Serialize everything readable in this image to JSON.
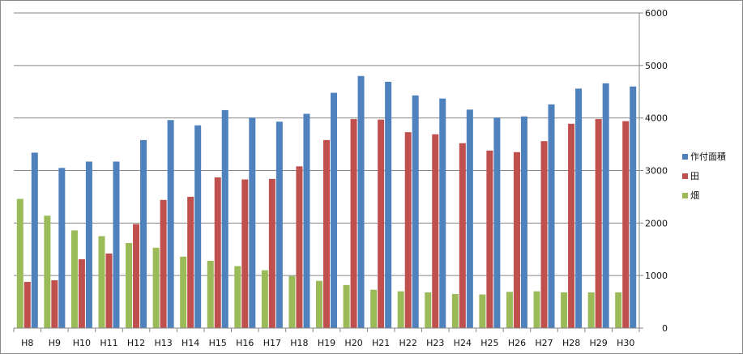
{
  "chart_data": {
    "type": "bar",
    "categories": [
      "H8",
      "H9",
      "H10",
      "H11",
      "H12",
      "H13",
      "H14",
      "H15",
      "H16",
      "H17",
      "H18",
      "H19",
      "H20",
      "H21",
      "H22",
      "H23",
      "H24",
      "H25",
      "H26",
      "H27",
      "H28",
      "H29",
      "H30"
    ],
    "series": [
      {
        "name": "畑",
        "color": "#9bbb59",
        "values": [
          2460,
          2140,
          1860,
          1750,
          1620,
          1530,
          1360,
          1280,
          1180,
          1100,
          990,
          900,
          820,
          730,
          700,
          680,
          650,
          640,
          690,
          700,
          680,
          680,
          680
        ]
      },
      {
        "name": "田",
        "color": "#c0504d",
        "values": [
          880,
          910,
          1310,
          1420,
          1980,
          2440,
          2500,
          2870,
          2830,
          2840,
          3080,
          3580,
          3980,
          3970,
          3730,
          3690,
          3520,
          3380,
          3350,
          3560,
          3890,
          3980,
          3940
        ]
      },
      {
        "name": "作付面積",
        "color": "#4f81bd",
        "values": [
          3340,
          3050,
          3170,
          3170,
          3580,
          3960,
          3860,
          4150,
          4010,
          3930,
          4080,
          4480,
          4800,
          4690,
          4430,
          4370,
          4160,
          4010,
          4030,
          4260,
          4560,
          4660,
          4600
        ]
      }
    ],
    "legend_order": [
      "作付面積",
      "田",
      "畑"
    ],
    "ylim": [
      0,
      6000
    ],
    "yticks": [
      "0",
      "1000",
      "2000",
      "3000",
      "4000",
      "5000",
      "6000"
    ],
    "y_axis_side": "right",
    "grid": true,
    "legend_position": "right",
    "title": "",
    "xlabel": "",
    "ylabel": ""
  }
}
